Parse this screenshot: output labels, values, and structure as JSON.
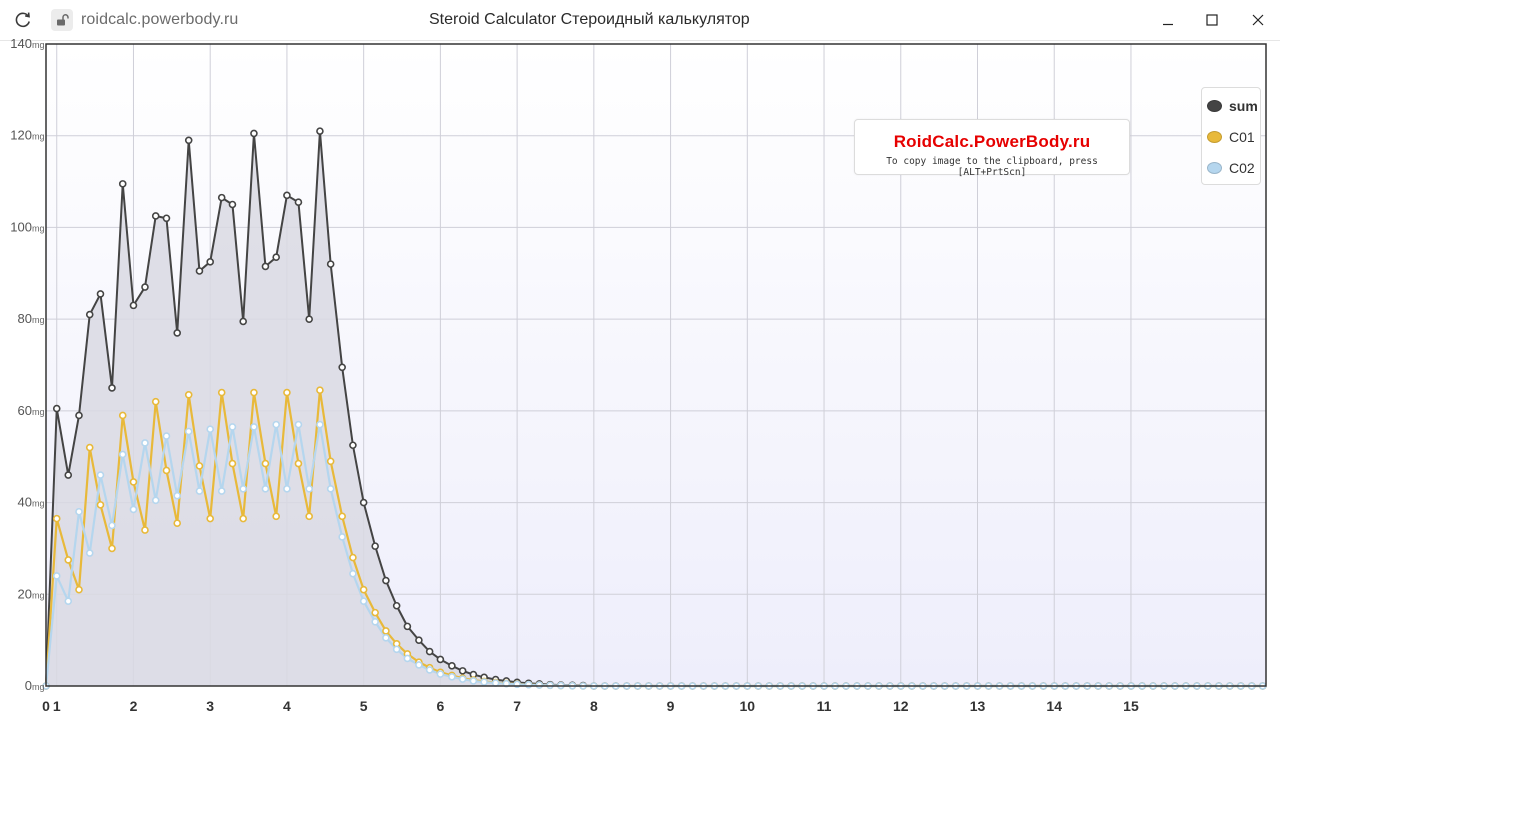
{
  "window": {
    "url": "roidcalc.powerbody.ru",
    "title": "Steroid Calculator Стероидный калькулятор"
  },
  "watermark": {
    "brand": "RoidCalc.PowerBody.ru",
    "hint": "To copy image to the clipboard, press [ALT+PrtScn]"
  },
  "legend": [
    {
      "label": "sum",
      "color": "#444444",
      "bold": true
    },
    {
      "label": "C01",
      "color": "#e8b93a",
      "bold": false
    },
    {
      "label": "C02",
      "color": "#b5d6ee",
      "bold": false
    }
  ],
  "colors": {
    "plot_bg_top": "#ffffff",
    "plot_bg_bottom": "#eeeefb",
    "grid": "#cfcfd8",
    "axis": "#333333",
    "area_fill": "#d9d9e3"
  },
  "chart_data": {
    "type": "line",
    "y_unit": "mg",
    "xlim": [
      0,
      15.9
    ],
    "ylim": [
      0,
      140
    ],
    "x_ticks": [
      "0",
      "1",
      "2",
      "3",
      "4",
      "5",
      "6",
      "7",
      "8",
      "9",
      "10",
      "11",
      "12",
      "13",
      "14",
      "15"
    ],
    "x_tick_values": [
      0,
      0.14,
      1.14,
      2.14,
      3.14,
      4.14,
      5.14,
      6.14,
      7.14,
      8.14,
      9.14,
      10.14,
      11.14,
      12.14,
      13.14,
      14.14
    ],
    "y_ticks": [
      "0",
      "20",
      "40",
      "60",
      "80",
      "100",
      "120",
      "140"
    ],
    "y_tick_values": [
      0,
      20,
      40,
      60,
      80,
      100,
      120,
      140
    ],
    "grid": true,
    "legend_position": "top-right",
    "series": [
      {
        "name": "sum",
        "points": [
          [
            0,
            0
          ],
          [
            0.14,
            60.5
          ],
          [
            0.29,
            46
          ],
          [
            0.43,
            59
          ],
          [
            0.57,
            81
          ],
          [
            0.71,
            85.5
          ],
          [
            0.86,
            65
          ],
          [
            1.0,
            109.5
          ],
          [
            1.14,
            83
          ],
          [
            1.29,
            87
          ],
          [
            1.43,
            102.5
          ],
          [
            1.57,
            102
          ],
          [
            1.71,
            77
          ],
          [
            1.86,
            119
          ],
          [
            2.0,
            90.5
          ],
          [
            2.14,
            92.5
          ],
          [
            2.29,
            106.5
          ],
          [
            2.43,
            105
          ],
          [
            2.57,
            79.5
          ],
          [
            2.71,
            120.5
          ],
          [
            2.86,
            91.5
          ],
          [
            3.0,
            93.5
          ],
          [
            3.14,
            107
          ],
          [
            3.29,
            105.5
          ],
          [
            3.43,
            80
          ],
          [
            3.57,
            121
          ],
          [
            3.71,
            92
          ],
          [
            3.86,
            69.5
          ],
          [
            4.0,
            52.5
          ],
          [
            4.14,
            40
          ],
          [
            4.29,
            30.5
          ],
          [
            4.43,
            23
          ],
          [
            4.57,
            17.5
          ],
          [
            4.71,
            13
          ],
          [
            4.86,
            10
          ],
          [
            5.0,
            7.5
          ],
          [
            5.14,
            5.8
          ],
          [
            5.29,
            4.4
          ],
          [
            5.43,
            3.3
          ],
          [
            5.57,
            2.5
          ],
          [
            5.71,
            1.9
          ],
          [
            5.86,
            1.4
          ],
          [
            6.0,
            1.1
          ],
          [
            6.14,
            0.8
          ],
          [
            6.29,
            0.6
          ],
          [
            6.43,
            0.45
          ],
          [
            6.57,
            0.3
          ],
          [
            6.71,
            0.2
          ],
          [
            6.86,
            0.15
          ],
          [
            7.0,
            0.1
          ],
          [
            7.14,
            0
          ]
        ]
      },
      {
        "name": "C01",
        "points": [
          [
            0,
            0
          ],
          [
            0.14,
            36.5
          ],
          [
            0.29,
            27.5
          ],
          [
            0.43,
            21
          ],
          [
            0.57,
            52
          ],
          [
            0.71,
            39.5
          ],
          [
            0.86,
            30
          ],
          [
            1.0,
            59
          ],
          [
            1.14,
            44.5
          ],
          [
            1.29,
            34
          ],
          [
            1.43,
            62
          ],
          [
            1.57,
            47
          ],
          [
            1.71,
            35.5
          ],
          [
            1.86,
            63.5
          ],
          [
            2.0,
            48
          ],
          [
            2.14,
            36.5
          ],
          [
            2.29,
            64
          ],
          [
            2.43,
            48.5
          ],
          [
            2.57,
            36.5
          ],
          [
            2.71,
            64
          ],
          [
            2.86,
            48.5
          ],
          [
            3.0,
            37
          ],
          [
            3.14,
            64
          ],
          [
            3.29,
            48.5
          ],
          [
            3.43,
            37
          ],
          [
            3.57,
            64.5
          ],
          [
            3.71,
            49
          ],
          [
            3.86,
            37
          ],
          [
            4.0,
            28
          ],
          [
            4.14,
            21
          ],
          [
            4.29,
            16
          ],
          [
            4.43,
            12
          ],
          [
            4.57,
            9.2
          ],
          [
            4.71,
            7
          ],
          [
            4.86,
            5.2
          ],
          [
            5.0,
            4
          ],
          [
            5.14,
            3
          ],
          [
            5.29,
            2.3
          ],
          [
            5.43,
            1.7
          ],
          [
            5.57,
            1.3
          ],
          [
            5.71,
            1
          ],
          [
            5.86,
            0.75
          ],
          [
            6.0,
            0.55
          ],
          [
            6.14,
            0.42
          ],
          [
            6.29,
            0.3
          ],
          [
            6.43,
            0.22
          ],
          [
            6.57,
            0.15
          ],
          [
            6.71,
            0.1
          ],
          [
            6.86,
            0.05
          ],
          [
            7.0,
            0
          ],
          [
            7.14,
            0
          ]
        ]
      },
      {
        "name": "C02",
        "points": [
          [
            0,
            0
          ],
          [
            0.14,
            24
          ],
          [
            0.29,
            18.5
          ],
          [
            0.43,
            38
          ],
          [
            0.57,
            29
          ],
          [
            0.71,
            46
          ],
          [
            0.86,
            35
          ],
          [
            1.0,
            50.5
          ],
          [
            1.14,
            38.5
          ],
          [
            1.29,
            53
          ],
          [
            1.43,
            40.5
          ],
          [
            1.57,
            54.5
          ],
          [
            1.71,
            41.5
          ],
          [
            1.86,
            55.5
          ],
          [
            2.0,
            42.5
          ],
          [
            2.14,
            56
          ],
          [
            2.29,
            42.5
          ],
          [
            2.43,
            56.5
          ],
          [
            2.57,
            43
          ],
          [
            2.71,
            56.5
          ],
          [
            2.86,
            43
          ],
          [
            3.0,
            57
          ],
          [
            3.14,
            43
          ],
          [
            3.29,
            57
          ],
          [
            3.43,
            43
          ],
          [
            3.57,
            57
          ],
          [
            3.71,
            43
          ],
          [
            3.86,
            32.5
          ],
          [
            4.0,
            24.5
          ],
          [
            4.14,
            18.5
          ],
          [
            4.29,
            14
          ],
          [
            4.43,
            10.5
          ],
          [
            4.57,
            8
          ],
          [
            4.71,
            6
          ],
          [
            4.86,
            4.6
          ],
          [
            5.0,
            3.5
          ],
          [
            5.14,
            2.6
          ],
          [
            5.29,
            2
          ],
          [
            5.43,
            1.5
          ],
          [
            5.57,
            1.1
          ],
          [
            5.71,
            0.85
          ],
          [
            5.86,
            0.65
          ],
          [
            6.0,
            0.5
          ],
          [
            6.14,
            0.37
          ],
          [
            6.29,
            0.28
          ],
          [
            6.43,
            0.2
          ],
          [
            6.57,
            0.15
          ],
          [
            6.71,
            0.1
          ],
          [
            6.86,
            0.05
          ],
          [
            7.0,
            0
          ],
          [
            7.14,
            0
          ]
        ]
      }
    ]
  }
}
